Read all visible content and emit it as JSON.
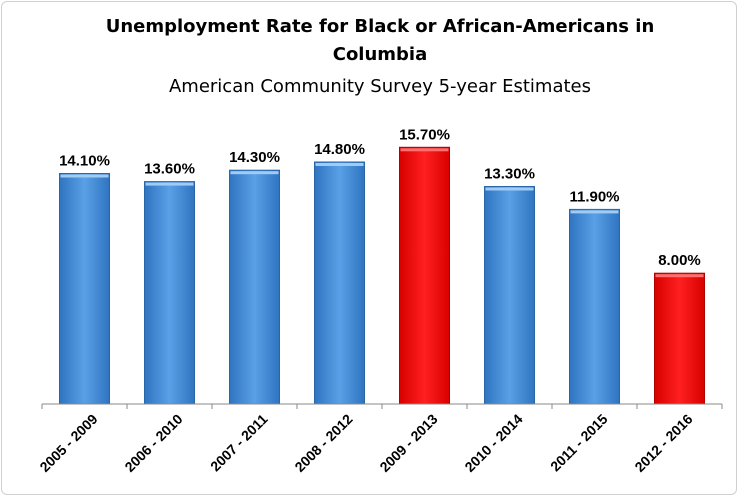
{
  "chart_data": {
    "type": "bar",
    "title": "Unemployment Rate for Black or African-Americans in Columbia",
    "title_lines": [
      "Unemployment Rate for Black or African-Americans in",
      "Columbia"
    ],
    "subtitle": "American Community Survey 5-year Estimates",
    "xlabel": "",
    "ylabel": "",
    "categories": [
      "2005 - 2009",
      "2006 - 2010",
      "2007 - 2011",
      "2008 - 2012",
      "2009 - 2013",
      "2010 - 2014",
      "2011 - 2015",
      "2012 - 2016"
    ],
    "values": [
      14.1,
      13.6,
      14.3,
      14.8,
      15.7,
      13.3,
      11.9,
      8.0
    ],
    "data_labels": [
      "14.10%",
      "13.60%",
      "14.30%",
      "14.80%",
      "15.70%",
      "13.30%",
      "11.90%",
      "8.00%"
    ],
    "ylim": [
      0,
      17
    ],
    "grid": false,
    "legend": "none",
    "y_axis_visible": false,
    "colors": {
      "default_bar": "#4a90d9",
      "highlight_bar": "#ff0000",
      "axis": "#888888"
    },
    "highlighted": [
      "2009 - 2013",
      "2012 - 2016"
    ]
  }
}
